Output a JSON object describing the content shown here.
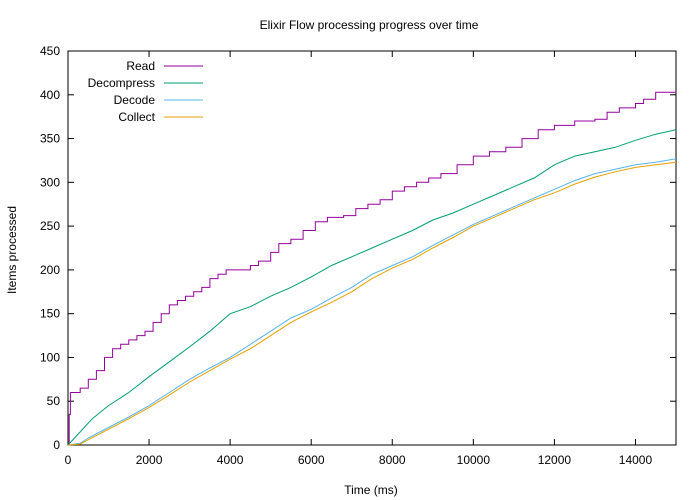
{
  "chart_data": {
    "type": "line",
    "title": "Elixir Flow processing progress over time",
    "xlabel": "Time (ms)",
    "ylabel": "Items processed",
    "xlim": [
      0,
      15000
    ],
    "ylim": [
      0,
      450
    ],
    "xticks": [
      0,
      2000,
      4000,
      6000,
      8000,
      10000,
      12000,
      14000
    ],
    "yticks": [
      0,
      50,
      100,
      150,
      200,
      250,
      300,
      350,
      400,
      450
    ],
    "grid": false,
    "legend_position": "top-left",
    "series": [
      {
        "name": "Read",
        "color": "#94009e",
        "step": true,
        "x": [
          0,
          30,
          60,
          300,
          500,
          700,
          900,
          1100,
          1300,
          1500,
          1700,
          1900,
          2100,
          2300,
          2500,
          2700,
          2900,
          3100,
          3300,
          3500,
          3700,
          3900,
          4100,
          4500,
          4700,
          5000,
          5200,
          5500,
          5800,
          6100,
          6400,
          6800,
          7100,
          7400,
          7700,
          8000,
          8300,
          8600,
          8900,
          9200,
          9600,
          10000,
          10400,
          10800,
          11200,
          11600,
          12000,
          12500,
          13000,
          13300,
          13600,
          14000,
          14200,
          14500,
          15000
        ],
        "values": [
          0,
          35,
          60,
          65,
          75,
          85,
          100,
          110,
          115,
          120,
          125,
          130,
          140,
          150,
          160,
          165,
          170,
          175,
          180,
          190,
          195,
          200,
          200,
          205,
          210,
          220,
          230,
          235,
          245,
          255,
          260,
          262,
          270,
          275,
          280,
          290,
          295,
          300,
          305,
          310,
          320,
          330,
          335,
          340,
          350,
          360,
          365,
          370,
          372,
          380,
          385,
          390,
          395,
          403,
          403
        ]
      },
      {
        "name": "Decompress",
        "color": "#009e73",
        "step": false,
        "x": [
          0,
          100,
          300,
          600,
          1000,
          1500,
          2000,
          2500,
          3000,
          3500,
          4000,
          4500,
          5000,
          5500,
          6000,
          6500,
          7000,
          7500,
          8000,
          8500,
          9000,
          9500,
          10000,
          10500,
          11000,
          11500,
          12000,
          12500,
          13000,
          13500,
          14000,
          14500,
          15000
        ],
        "values": [
          0,
          5,
          15,
          30,
          45,
          60,
          78,
          95,
          112,
          130,
          150,
          158,
          170,
          180,
          192,
          205,
          215,
          225,
          235,
          245,
          257,
          265,
          275,
          285,
          295,
          305,
          320,
          330,
          335,
          340,
          348,
          355,
          360
        ]
      },
      {
        "name": "Decode",
        "color": "#56b4e9",
        "step": false,
        "x": [
          0,
          300,
          500,
          1000,
          1500,
          2000,
          2500,
          3000,
          3500,
          4000,
          4500,
          5000,
          5500,
          6000,
          6500,
          7000,
          7500,
          8000,
          8500,
          9000,
          9500,
          10000,
          10500,
          11000,
          11500,
          12000,
          12500,
          13000,
          13500,
          14000,
          14500,
          15000
        ],
        "values": [
          0,
          2,
          8,
          20,
          32,
          45,
          60,
          75,
          88,
          100,
          115,
          130,
          145,
          155,
          168,
          180,
          195,
          205,
          215,
          228,
          240,
          252,
          262,
          272,
          282,
          292,
          302,
          310,
          315,
          320,
          323,
          327
        ]
      },
      {
        "name": "Collect",
        "color": "#e69f00",
        "step": false,
        "x": [
          0,
          300,
          500,
          1000,
          1500,
          2000,
          2500,
          3000,
          3500,
          4000,
          4500,
          5000,
          5500,
          6000,
          6500,
          7000,
          7500,
          8000,
          8500,
          9000,
          9500,
          10000,
          10500,
          11000,
          11500,
          12000,
          12500,
          13000,
          13500,
          14000,
          14500,
          15000
        ],
        "values": [
          0,
          1,
          6,
          18,
          30,
          43,
          57,
          72,
          85,
          98,
          110,
          125,
          140,
          152,
          163,
          175,
          190,
          202,
          212,
          225,
          237,
          250,
          260,
          270,
          280,
          288,
          298,
          306,
          312,
          317,
          320,
          323
        ]
      }
    ]
  }
}
